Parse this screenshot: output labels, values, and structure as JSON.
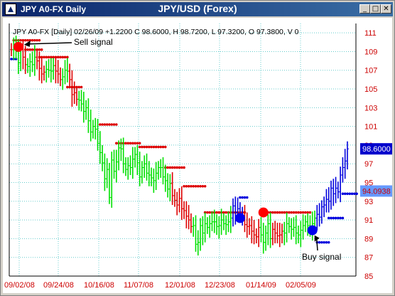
{
  "window": {
    "title": "JPY A0-FX Daily",
    "center_title": "JPY/USD (Forex)",
    "minimize_label": "_",
    "maximize_label": "□",
    "close_label": "✕",
    "icon": "app-triangle-icon"
  },
  "chart_data": {
    "type": "line",
    "title": "",
    "info_line": "JPY A0-FX [Daily] 02/26/09 +1.2200 C 98.6000, H 98.7200, L 97.3200, O 97.3800, V 0",
    "y_ticks": [
      "111",
      "109",
      "107",
      "105",
      "103",
      "101",
      "99",
      "97",
      "95",
      "93",
      "91",
      "89",
      "87",
      "85"
    ],
    "ylim": [
      85,
      112
    ],
    "x_ticks": [
      "09/02/08",
      "09/24/08",
      "10/16/08",
      "11/07/08",
      "12/01/08",
      "12/23/08",
      "01/14/09",
      "02/05/09"
    ],
    "price_labels": [
      "98.6000",
      "94.0938"
    ],
    "price_values": [
      98.6,
      94.09
    ],
    "annotations": [
      {
        "text": "Sell signal",
        "x_index": 1,
        "y": 109.5
      },
      {
        "text": "Buy signal",
        "x_index": 141,
        "y": 89.9
      }
    ],
    "colors": {
      "up": "#00e000",
      "down": "#dd0000",
      "recent": "#0000dd",
      "sell": "#ff0000",
      "buy": "#0000ee",
      "grid": "#66cccc",
      "axis_text": "#cc0000"
    },
    "series": [
      {
        "phase": "red",
        "y": 109.2
      },
      {
        "phase": "green",
        "y": 109.6
      },
      {
        "phase": "green",
        "y": 109.0
      },
      {
        "phase": "green",
        "y": 107.8
      },
      {
        "phase": "green",
        "y": 109.2
      },
      {
        "phase": "red",
        "y": 108.4
      },
      {
        "phase": "red",
        "y": 107.6
      },
      {
        "phase": "green",
        "y": 107.4
      },
      {
        "phase": "green",
        "y": 107.9
      },
      {
        "phase": "green",
        "y": 107.6
      },
      {
        "phase": "green",
        "y": 108.4
      },
      {
        "phase": "red",
        "y": 108.0
      },
      {
        "phase": "red",
        "y": 107.2
      },
      {
        "phase": "red",
        "y": 106.6
      },
      {
        "phase": "red",
        "y": 106.8
      },
      {
        "phase": "green",
        "y": 107.1
      },
      {
        "phase": "green",
        "y": 107.0
      },
      {
        "phase": "green",
        "y": 106.9
      },
      {
        "phase": "green",
        "y": 107.5
      },
      {
        "phase": "red",
        "y": 106.9
      },
      {
        "phase": "red",
        "y": 106.6
      },
      {
        "phase": "red",
        "y": 106.0
      },
      {
        "phase": "green",
        "y": 106.3
      },
      {
        "phase": "green",
        "y": 107.0
      },
      {
        "phase": "green",
        "y": 106.9
      },
      {
        "phase": "red",
        "y": 106.0
      },
      {
        "phase": "red",
        "y": 104.4
      },
      {
        "phase": "red",
        "y": 104.6
      },
      {
        "phase": "red",
        "y": 103.9
      },
      {
        "phase": "green",
        "y": 103.8
      },
      {
        "phase": "green",
        "y": 103.4
      },
      {
        "phase": "green",
        "y": 102.6
      },
      {
        "phase": "green",
        "y": 103.0
      },
      {
        "phase": "green",
        "y": 101.6
      },
      {
        "phase": "green",
        "y": 100.4
      },
      {
        "phase": "green",
        "y": 101.0
      },
      {
        "phase": "green",
        "y": 100.7
      },
      {
        "phase": "green",
        "y": 99.2
      },
      {
        "phase": "green",
        "y": 98.2
      },
      {
        "phase": "green",
        "y": 97.1
      },
      {
        "phase": "green",
        "y": 95.4
      },
      {
        "phase": "green",
        "y": 96.4
      },
      {
        "phase": "green",
        "y": 93.4
      },
      {
        "phase": "green",
        "y": 97.4
      },
      {
        "phase": "green",
        "y": 96.2
      },
      {
        "phase": "green",
        "y": 97.2
      },
      {
        "phase": "green",
        "y": 98.7
      },
      {
        "phase": "green",
        "y": 98.6
      },
      {
        "phase": "green",
        "y": 97.0
      },
      {
        "phase": "green",
        "y": 96.4
      },
      {
        "phase": "green",
        "y": 96.8
      },
      {
        "phase": "green",
        "y": 96.6
      },
      {
        "phase": "green",
        "y": 97.5
      },
      {
        "phase": "green",
        "y": 98.0
      },
      {
        "phase": "green",
        "y": 97.1
      },
      {
        "phase": "green",
        "y": 95.6
      },
      {
        "phase": "green",
        "y": 96.6
      },
      {
        "phase": "green",
        "y": 97.0
      },
      {
        "phase": "green",
        "y": 96.0
      },
      {
        "phase": "green",
        "y": 95.8
      },
      {
        "phase": "green",
        "y": 95.5
      },
      {
        "phase": "green",
        "y": 95.2
      },
      {
        "phase": "green",
        "y": 96.0
      },
      {
        "phase": "green",
        "y": 96.6
      },
      {
        "phase": "green",
        "y": 96.6
      },
      {
        "phase": "green",
        "y": 95.6
      },
      {
        "phase": "green",
        "y": 95.2
      },
      {
        "phase": "green",
        "y": 94.3
      },
      {
        "phase": "green",
        "y": 94.9
      },
      {
        "phase": "red",
        "y": 93.6
      },
      {
        "phase": "red",
        "y": 93.1
      },
      {
        "phase": "red",
        "y": 92.6
      },
      {
        "phase": "red",
        "y": 93.3
      },
      {
        "phase": "red",
        "y": 92.2
      },
      {
        "phase": "red",
        "y": 92.0
      },
      {
        "phase": "red",
        "y": 91.4
      },
      {
        "phase": "red",
        "y": 91.0
      },
      {
        "phase": "red",
        "y": 90.3
      },
      {
        "phase": "green",
        "y": 90.4
      },
      {
        "phase": "green",
        "y": 88.4
      },
      {
        "phase": "green",
        "y": 88.6
      },
      {
        "phase": "green",
        "y": 90.4
      },
      {
        "phase": "green",
        "y": 89.6
      },
      {
        "phase": "green",
        "y": 90.6
      },
      {
        "phase": "green",
        "y": 90.2
      },
      {
        "phase": "green",
        "y": 90.6
      },
      {
        "phase": "green",
        "y": 90.8
      },
      {
        "phase": "green",
        "y": 90.8
      },
      {
        "phase": "green",
        "y": 90.3
      },
      {
        "phase": "green",
        "y": 90.4
      },
      {
        "phase": "green",
        "y": 91.0
      },
      {
        "phase": "green",
        "y": 90.6
      },
      {
        "phase": "green",
        "y": 90.5
      },
      {
        "phase": "green",
        "y": 90.8
      },
      {
        "phase": "green",
        "y": 91.2
      },
      {
        "phase": "blue",
        "y": 92.5
      },
      {
        "phase": "blue",
        "y": 91.8
      },
      {
        "phase": "blue",
        "y": 92.2
      },
      {
        "phase": "blue",
        "y": 91.5
      },
      {
        "phase": "blue",
        "y": 91.5
      },
      {
        "phase": "red",
        "y": 90.5
      },
      {
        "phase": "red",
        "y": 90.3
      },
      {
        "phase": "red",
        "y": 90.4
      },
      {
        "phase": "red",
        "y": 89.8
      },
      {
        "phase": "red",
        "y": 89.4
      },
      {
        "phase": "red",
        "y": 89.2
      },
      {
        "phase": "red",
        "y": 90.2
      },
      {
        "phase": "green",
        "y": 89.4
      },
      {
        "phase": "green",
        "y": 88.6
      },
      {
        "phase": "green",
        "y": 89.6
      },
      {
        "phase": "green",
        "y": 90.6
      },
      {
        "phase": "green",
        "y": 89.0
      },
      {
        "phase": "red",
        "y": 90.0
      },
      {
        "phase": "red",
        "y": 89.6
      },
      {
        "phase": "red",
        "y": 89.3
      },
      {
        "phase": "red",
        "y": 89.4
      },
      {
        "phase": "red",
        "y": 89.8
      },
      {
        "phase": "green",
        "y": 89.6
      },
      {
        "phase": "green",
        "y": 90.6
      },
      {
        "phase": "green",
        "y": 90.3
      },
      {
        "phase": "green",
        "y": 90.0
      },
      {
        "phase": "green",
        "y": 90.2
      },
      {
        "phase": "green",
        "y": 89.6
      },
      {
        "phase": "green",
        "y": 89.4
      },
      {
        "phase": "green",
        "y": 89.9
      },
      {
        "phase": "green",
        "y": 90.4
      },
      {
        "phase": "green",
        "y": 90.8
      },
      {
        "phase": "green",
        "y": 90.4
      },
      {
        "phase": "green",
        "y": 90.0
      },
      {
        "phase": "green",
        "y": 90.6
      },
      {
        "phase": "green",
        "y": 91.2
      },
      {
        "phase": "blue",
        "y": 91.6
      },
      {
        "phase": "blue",
        "y": 91.3
      },
      {
        "phase": "blue",
        "y": 92.4
      },
      {
        "phase": "blue",
        "y": 92.6
      },
      {
        "phase": "blue",
        "y": 93.2
      },
      {
        "phase": "blue",
        "y": 93.0
      },
      {
        "phase": "blue",
        "y": 94.4
      },
      {
        "phase": "blue",
        "y": 93.8
      },
      {
        "phase": "blue",
        "y": 94.4
      },
      {
        "phase": "blue",
        "y": 94.0
      },
      {
        "phase": "blue",
        "y": 95.8
      },
      {
        "phase": "blue",
        "y": 96.6
      },
      {
        "phase": "blue",
        "y": 97.3
      },
      {
        "phase": "blue",
        "y": 98.6
      }
    ],
    "stops": [
      {
        "kind": "red",
        "from": 1,
        "to": 12,
        "y": 110.2
      },
      {
        "kind": "red",
        "from": 6,
        "to": 13,
        "y": 109.2
      },
      {
        "kind": "red",
        "from": 12,
        "to": 24,
        "y": 108.4
      },
      {
        "kind": "red",
        "from": 24,
        "to": 30,
        "y": 105.2
      },
      {
        "kind": "red",
        "from": 38,
        "to": 45,
        "y": 101.2
      },
      {
        "kind": "red",
        "from": 45,
        "to": 55,
        "y": 99.2
      },
      {
        "kind": "red",
        "from": 55,
        "to": 66,
        "y": 98.8
      },
      {
        "kind": "red",
        "from": 66,
        "to": 74,
        "y": 96.6
      },
      {
        "kind": "red",
        "from": 74,
        "to": 83,
        "y": 94.6
      },
      {
        "kind": "red",
        "from": 83,
        "to": 100,
        "y": 91.8
      },
      {
        "kind": "red",
        "from": 108,
        "to": 128,
        "y": 91.8
      },
      {
        "kind": "blue",
        "from": 0,
        "to": 2,
        "y": 108.2
      },
      {
        "kind": "blue",
        "from": 98,
        "to": 101,
        "y": 93.4
      },
      {
        "kind": "blue",
        "from": 131,
        "to": 136,
        "y": 88.6
      },
      {
        "kind": "blue",
        "from": 136,
        "to": 142,
        "y": 91.2
      },
      {
        "kind": "blue",
        "from": 142,
        "to": 148,
        "y": 93.8
      }
    ],
    "signals": [
      {
        "kind": "sell",
        "x_index": 3,
        "y": 109.5
      },
      {
        "kind": "sell",
        "x_index": 108,
        "y": 91.8
      },
      {
        "kind": "buy",
        "x_index": 98,
        "y": 91.2
      },
      {
        "kind": "buy",
        "x_index": 129,
        "y": 89.9
      }
    ]
  }
}
